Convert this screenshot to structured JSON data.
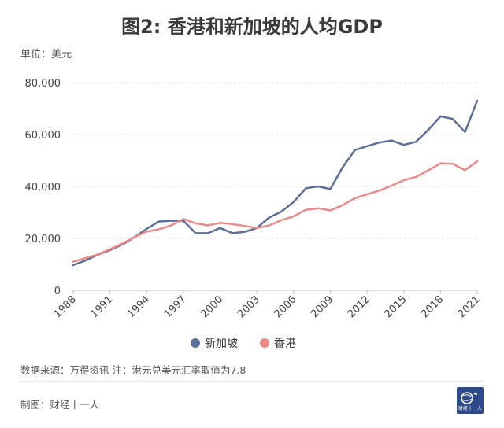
{
  "title": "图2: 香港和新加坡的人均GDP",
  "unit_label": "单位：美元",
  "source_note": "数据来源：万得资讯 注：港元兑美元汇率取值为7.8",
  "maker_note": "制图：财经十一人",
  "logo_text": "财经十一人",
  "chart_data": {
    "type": "line",
    "title": "图2: 香港和新加坡的人均GDP",
    "ylabel": "单位：美元",
    "xlabel": "",
    "x": [
      1988,
      1989,
      1990,
      1991,
      1992,
      1993,
      1994,
      1995,
      1996,
      1997,
      1998,
      1999,
      2000,
      2001,
      2002,
      2003,
      2004,
      2005,
      2006,
      2007,
      2008,
      2009,
      2010,
      2011,
      2012,
      2013,
      2014,
      2015,
      2016,
      2017,
      2018,
      2019,
      2020,
      2021
    ],
    "x_tick_labels": [
      "1988",
      "1991",
      "1994",
      "1997",
      "2000",
      "2003",
      "2006",
      "2009",
      "2012",
      "2015",
      "2018",
      "2021"
    ],
    "y_tick_labels": [
      "0",
      "20,000",
      "40,000",
      "60,000",
      "80,000"
    ],
    "y_ticks": [
      0,
      20000,
      40000,
      60000,
      80000
    ],
    "ylim": [
      0,
      80000
    ],
    "xlim": [
      1988,
      2021
    ],
    "grid": "horizontal-dashed",
    "legend_position": "bottom-center",
    "series": [
      {
        "name": "新加坡",
        "color": "#5b6f97",
        "values": [
          9700,
          11500,
          13700,
          15500,
          17600,
          20500,
          23700,
          26500,
          26800,
          26800,
          22000,
          22000,
          24000,
          22000,
          22500,
          24000,
          28000,
          30300,
          34000,
          39300,
          40000,
          39000,
          47300,
          54000,
          55500,
          56900,
          57700,
          56000,
          57200,
          61800,
          67000,
          66000,
          61000,
          73000
        ]
      },
      {
        "name": "香港",
        "color": "#ec8a8a",
        "values": [
          11000,
          12400,
          13800,
          15800,
          18000,
          20500,
          22600,
          23500,
          25000,
          27500,
          25800,
          25000,
          26000,
          25500,
          24800,
          24000,
          25000,
          27000,
          28500,
          31000,
          31600,
          30800,
          32800,
          35500,
          37000,
          38400,
          40300,
          42400,
          43700,
          46200,
          48900,
          48700,
          46300,
          49700
        ]
      }
    ]
  }
}
